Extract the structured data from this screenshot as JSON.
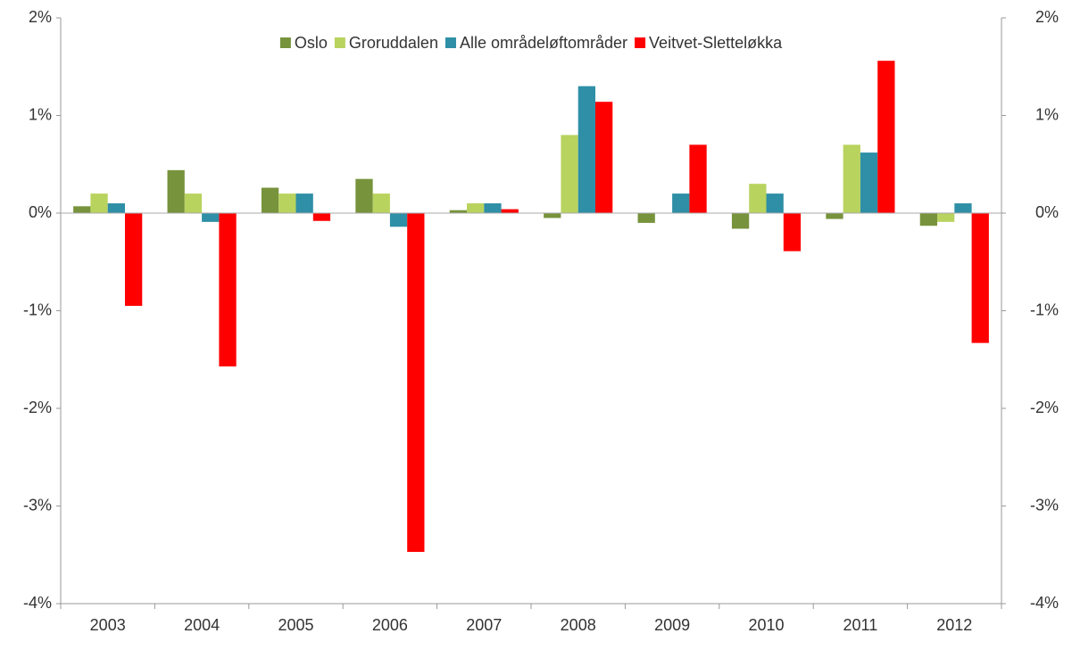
{
  "chart_data": {
    "type": "bar",
    "categories": [
      "2003",
      "2004",
      "2005",
      "2006",
      "2007",
      "2008",
      "2009",
      "2010",
      "2011",
      "2012"
    ],
    "series": [
      {
        "name": "Oslo",
        "color": "#77933c",
        "values": [
          0.07,
          0.44,
          0.26,
          0.35,
          0.03,
          -0.05,
          -0.1,
          -0.16,
          -0.06,
          -0.13
        ]
      },
      {
        "name": "Groruddalen",
        "color": "#b9d35f",
        "values": [
          0.2,
          0.2,
          0.2,
          0.2,
          0.1,
          0.8,
          0,
          0.3,
          0.7,
          -0.09
        ]
      },
      {
        "name": "Alle områdeløftområder",
        "color": "#2e8fa6",
        "values": [
          0.1,
          -0.09,
          0.2,
          -0.14,
          0.1,
          1.3,
          0.2,
          0.2,
          0.62,
          0.1
        ]
      },
      {
        "name": "Veitvet-Sletteløkka",
        "color": "#ff0000",
        "values": [
          -0.95,
          -1.57,
          -0.08,
          -3.47,
          0.04,
          1.14,
          0.7,
          -0.39,
          1.56,
          -1.33
        ]
      }
    ],
    "ylim": [
      -4,
      2
    ],
    "yticks": [
      {
        "value": -4,
        "label": "-4%"
      },
      {
        "value": -3,
        "label": "-3%"
      },
      {
        "value": -2,
        "label": "-2%"
      },
      {
        "value": -1,
        "label": "-1%"
      },
      {
        "value": 0,
        "label": "0%"
      },
      {
        "value": 1,
        "label": "1%"
      },
      {
        "value": 2,
        "label": "2%"
      }
    ],
    "y2lim": [
      -4,
      2
    ],
    "y2ticks": [
      {
        "value": -4,
        "label": "-4%"
      },
      {
        "value": -3,
        "label": "-3%"
      },
      {
        "value": -2,
        "label": "-2%"
      },
      {
        "value": -1,
        "label": "-1%"
      },
      {
        "value": 0,
        "label": "0%"
      },
      {
        "value": 1,
        "label": "1%"
      },
      {
        "value": 2,
        "label": "2%"
      }
    ],
    "legend": "top"
  }
}
